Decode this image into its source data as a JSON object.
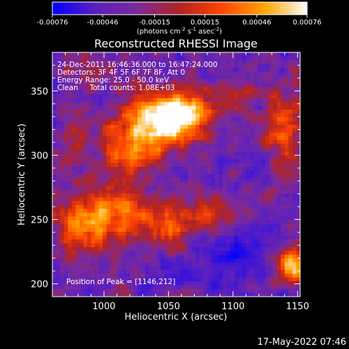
{
  "chart_data": {
    "type": "heatmap",
    "title": "Reconstructed RHESSI Image",
    "xlabel": "Heliocentric X (arcsec)",
    "ylabel": "Heliocentric Y (arcsec)",
    "xlim": [
      960,
      1152
    ],
    "ylim": [
      190,
      380
    ],
    "xticks": [
      1000,
      1050,
      1100,
      1150
    ],
    "yticks": [
      200,
      250,
      300,
      350
    ],
    "colorbar": {
      "range": [
        -0.00076,
        0.00076
      ],
      "ticks": [
        -0.00076,
        -0.00046,
        -0.00015,
        0.00015,
        0.00046,
        0.00076
      ],
      "tick_labels": [
        "-0.00076",
        "-0.00046",
        "-0.00015",
        "0.00015",
        "0.00046",
        "0.00076"
      ],
      "unit_prefix": "(photons cm",
      "unit_exp1": "-2",
      "unit_mid1": " s",
      "unit_exp2": "-1",
      "unit_mid2": " asec",
      "unit_exp3": "-2",
      "unit_suffix": ")",
      "colors": [
        "#0000ff",
        "#5a1fc0",
        "#7a2a9a",
        "#b22222",
        "#ff4500",
        "#ffa500",
        "#ffffff"
      ]
    },
    "annotations": [
      "24-Dec-2011 16:46:36.000 to 16:47:24.000",
      "Detectors: 3F 4F 5F 6F 7F 8F, Att 0",
      "Energy Range: 25.0 - 50.0 keV",
      "Clean     Total counts: 1.08E+03"
    ],
    "peak_label": "Position of Peak = [1146,212]",
    "sources": [
      {
        "x": 1045,
        "y": 325,
        "amp": 1.0,
        "sx": 22,
        "sy": 15
      },
      {
        "x": 1060,
        "y": 335,
        "amp": 0.8,
        "sx": 15,
        "sy": 10
      },
      {
        "x": 1020,
        "y": 300,
        "amp": 0.6,
        "sx": 15,
        "sy": 20
      },
      {
        "x": 985,
        "y": 245,
        "amp": 0.8,
        "sx": 18,
        "sy": 15
      },
      {
        "x": 1015,
        "y": 255,
        "amp": 0.5,
        "sx": 14,
        "sy": 12
      },
      {
        "x": 1050,
        "y": 245,
        "amp": 0.6,
        "sx": 14,
        "sy": 12
      },
      {
        "x": 1085,
        "y": 255,
        "amp": 0.5,
        "sx": 14,
        "sy": 10
      },
      {
        "x": 1140,
        "y": 320,
        "amp": 0.6,
        "sx": 12,
        "sy": 25
      },
      {
        "x": 1146,
        "y": 212,
        "amp": 1.1,
        "sx": 7,
        "sy": 9
      },
      {
        "x": 975,
        "y": 310,
        "amp": 0.3,
        "sx": 12,
        "sy": 14
      },
      {
        "x": 1100,
        "y": 345,
        "amp": 0.35,
        "sx": 12,
        "sy": 10
      },
      {
        "x": 990,
        "y": 365,
        "amp": 0.35,
        "sx": 14,
        "sy": 8
      }
    ],
    "sinks": [
      {
        "x": 1100,
        "y": 225,
        "amp": 0.4,
        "sx": 15,
        "sy": 12
      },
      {
        "x": 1120,
        "y": 290,
        "amp": 0.25,
        "sx": 10,
        "sy": 10
      },
      {
        "x": 1060,
        "y": 210,
        "amp": 0.25,
        "sx": 12,
        "sy": 8
      }
    ]
  },
  "footer": {
    "timestamp": "17-May-2022 07:46"
  }
}
